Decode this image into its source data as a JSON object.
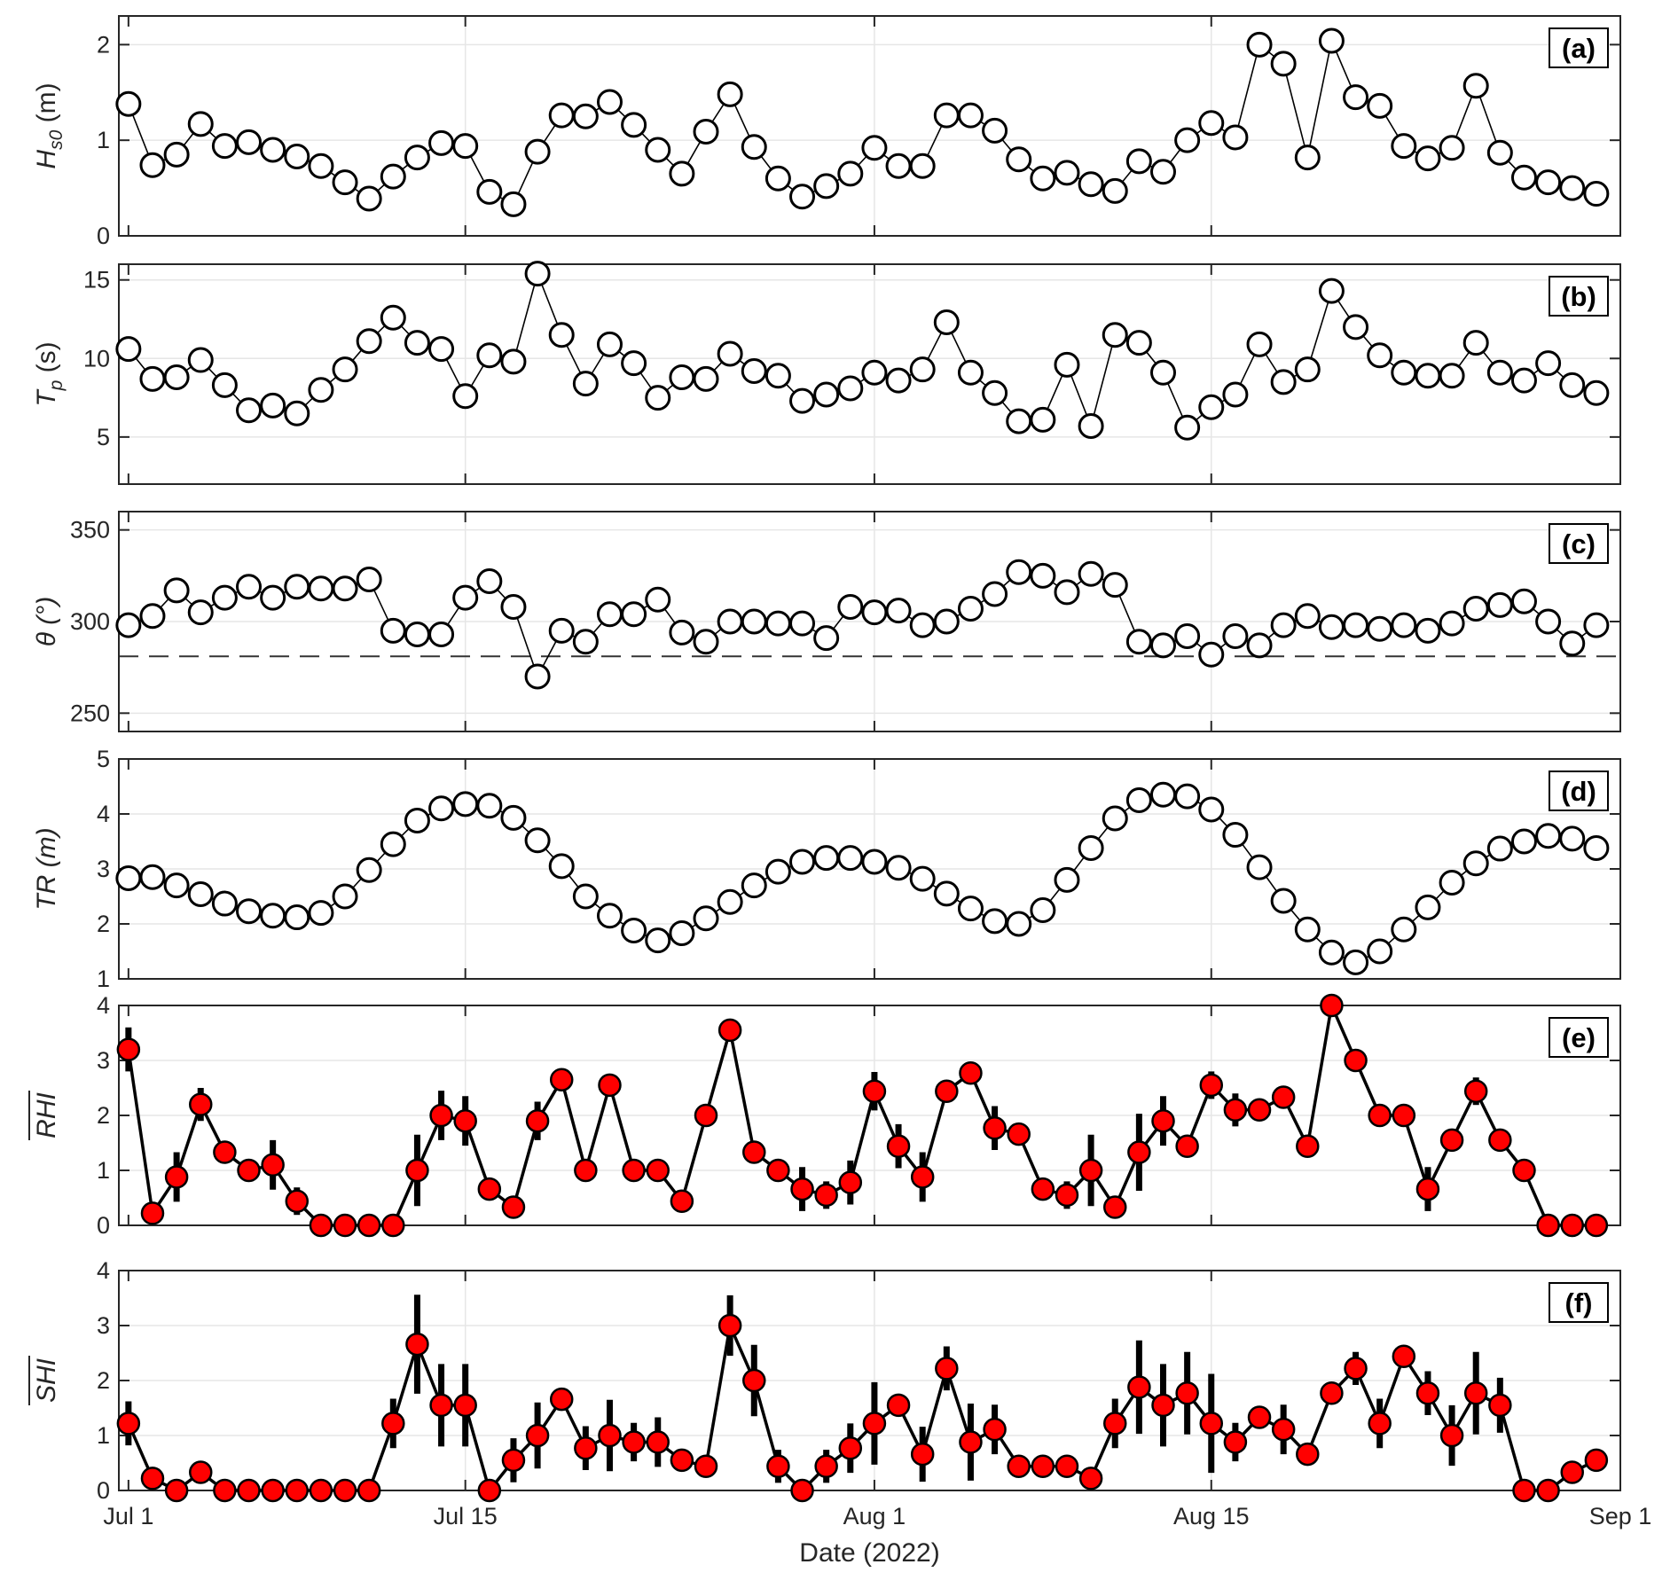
{
  "chart_data": [
    {
      "panel": "(a)",
      "type": "line",
      "ylabel": "H",
      "ylabel_sub": "s0",
      "ylabel_unit": " (m)",
      "ylim": [
        0,
        2.3
      ],
      "yticks": [
        0,
        1,
        2
      ],
      "x": [
        1,
        2,
        3,
        4,
        5,
        6,
        7,
        8,
        9,
        10,
        11,
        12,
        13,
        14,
        15,
        16,
        17,
        18,
        19,
        20,
        21,
        22,
        23,
        24,
        25,
        26,
        27,
        28,
        29,
        30,
        31,
        32,
        33,
        34,
        35,
        36,
        37,
        38,
        39,
        40,
        41,
        42,
        43,
        44,
        45,
        46,
        47,
        48,
        49,
        50,
        51,
        52,
        53,
        54,
        55,
        56,
        57,
        58,
        59,
        60,
        61,
        62
      ],
      "values": [
        1.38,
        0.74,
        0.85,
        1.17,
        0.94,
        0.98,
        0.9,
        0.83,
        0.73,
        0.56,
        0.39,
        0.62,
        0.82,
        0.97,
        0.94,
        0.46,
        0.33,
        0.88,
        1.26,
        1.25,
        1.4,
        1.16,
        0.9,
        0.65,
        1.09,
        1.48,
        0.93,
        0.6,
        0.41,
        0.52,
        0.65,
        0.92,
        0.73,
        0.73,
        1.26,
        1.26,
        1.1,
        0.8,
        0.6,
        0.66,
        0.54,
        0.47,
        0.78,
        0.67,
        1.0,
        1.18,
        1.03,
        2.0,
        1.8,
        0.82,
        2.04,
        1.45,
        1.36,
        0.94,
        0.81,
        0.92,
        1.57,
        0.87,
        0.61,
        0.56,
        0.5,
        0.44
      ]
    },
    {
      "panel": "(b)",
      "type": "line",
      "ylabel": "T",
      "ylabel_sub": "p",
      "ylabel_unit": " (s)",
      "ylim": [
        2,
        16
      ],
      "yticks": [
        5,
        10,
        15
      ],
      "x": [
        1,
        2,
        3,
        4,
        5,
        6,
        7,
        8,
        9,
        10,
        11,
        12,
        13,
        14,
        15,
        16,
        17,
        18,
        19,
        20,
        21,
        22,
        23,
        24,
        25,
        26,
        27,
        28,
        29,
        30,
        31,
        32,
        33,
        34,
        35,
        36,
        37,
        38,
        39,
        40,
        41,
        42,
        43,
        44,
        45,
        46,
        47,
        48,
        49,
        50,
        51,
        52,
        53,
        54,
        55,
        56,
        57,
        58,
        59,
        60,
        61,
        62
      ],
      "values": [
        10.6,
        8.7,
        8.8,
        9.9,
        8.3,
        6.7,
        7.0,
        6.5,
        8.0,
        9.3,
        11.1,
        12.6,
        11.0,
        10.6,
        7.6,
        10.2,
        9.8,
        15.4,
        11.5,
        8.4,
        10.9,
        9.7,
        7.5,
        8.8,
        8.7,
        10.3,
        9.2,
        8.9,
        7.3,
        7.7,
        8.1,
        9.1,
        8.6,
        9.3,
        12.3,
        9.1,
        7.8,
        6.0,
        6.1,
        9.6,
        5.7,
        11.5,
        11.0,
        9.1,
        5.6,
        6.9,
        7.7,
        10.9,
        8.5,
        9.3,
        14.3,
        12.0,
        10.2,
        9.1,
        8.9,
        8.9,
        11.0,
        9.1,
        8.6,
        9.7,
        8.3,
        7.8
      ]
    },
    {
      "panel": "(c)",
      "type": "line",
      "ylabel": "θ (°)",
      "ylim": [
        240,
        360
      ],
      "yticks": [
        250,
        300,
        350
      ],
      "reference_line": 281,
      "x": [
        1,
        2,
        3,
        4,
        5,
        6,
        7,
        8,
        9,
        10,
        11,
        12,
        13,
        14,
        15,
        16,
        17,
        18,
        19,
        20,
        21,
        22,
        23,
        24,
        25,
        26,
        27,
        28,
        29,
        30,
        31,
        32,
        33,
        34,
        35,
        36,
        37,
        38,
        39,
        40,
        41,
        42,
        43,
        44,
        45,
        46,
        47,
        48,
        49,
        50,
        51,
        52,
        53,
        54,
        55,
        56,
        57,
        58,
        59,
        60,
        61,
        62
      ],
      "values": [
        298,
        303,
        317,
        305,
        313,
        319,
        313,
        319,
        318,
        318,
        323,
        295,
        293,
        293,
        313,
        322,
        308,
        270,
        295,
        289,
        304,
        304,
        312,
        294,
        289,
        300,
        300,
        299,
        299,
        291,
        308,
        305,
        306,
        298,
        300,
        307,
        315,
        327,
        325,
        316,
        326,
        320,
        289,
        287,
        292,
        282,
        292,
        287,
        298,
        303,
        297,
        298,
        296,
        298,
        295,
        299,
        307,
        309,
        311,
        300,
        288,
        298
      ]
    },
    {
      "panel": "(d)",
      "type": "line",
      "ylabel": "TR (m)",
      "ylim": [
        1,
        5
      ],
      "yticks": [
        1,
        2,
        3,
        4,
        5
      ],
      "x": [
        1,
        2,
        3,
        4,
        5,
        6,
        7,
        8,
        9,
        10,
        11,
        12,
        13,
        14,
        15,
        16,
        17,
        18,
        19,
        20,
        21,
        22,
        23,
        24,
        25,
        26,
        27,
        28,
        29,
        30,
        31,
        32,
        33,
        34,
        35,
        36,
        37,
        38,
        39,
        40,
        41,
        42,
        43,
        44,
        45,
        46,
        47,
        48,
        49,
        50,
        51,
        52,
        53,
        54,
        55,
        56,
        57,
        58,
        59,
        60,
        61,
        62
      ],
      "values": [
        2.83,
        2.85,
        2.7,
        2.54,
        2.37,
        2.23,
        2.15,
        2.12,
        2.2,
        2.5,
        2.98,
        3.45,
        3.88,
        4.1,
        4.18,
        4.15,
        3.93,
        3.52,
        3.05,
        2.5,
        2.15,
        1.88,
        1.7,
        1.83,
        2.1,
        2.4,
        2.7,
        2.95,
        3.13,
        3.2,
        3.2,
        3.13,
        3.02,
        2.82,
        2.55,
        2.28,
        2.05,
        2.0,
        2.25,
        2.8,
        3.38,
        3.92,
        4.25,
        4.35,
        4.32,
        4.08,
        3.62,
        3.03,
        2.42,
        1.9,
        1.48,
        1.3,
        1.5,
        1.9,
        2.3,
        2.75,
        3.1,
        3.37,
        3.5,
        3.6,
        3.55,
        3.38
      ]
    },
    {
      "panel": "(e)",
      "type": "line",
      "ylabel": "RHI",
      "ylabel_overline": true,
      "ylim": [
        0,
        4
      ],
      "yticks": [
        0,
        1,
        2,
        3,
        4
      ],
      "x": [
        1,
        2,
        3,
        4,
        5,
        6,
        7,
        8,
        9,
        10,
        11,
        12,
        13,
        14,
        15,
        16,
        17,
        18,
        19,
        20,
        21,
        22,
        23,
        24,
        25,
        26,
        27,
        28,
        29,
        30,
        31,
        32,
        33,
        34,
        35,
        36,
        37,
        38,
        39,
        40,
        41,
        42,
        43,
        44,
        45,
        46,
        47,
        48,
        49,
        50,
        51,
        52,
        53,
        54,
        55,
        56,
        57,
        58,
        59,
        60,
        61,
        62
      ],
      "values": [
        3.2,
        0.22,
        0.88,
        2.2,
        1.33,
        1.0,
        1.1,
        0.44,
        0.0,
        0.0,
        0.0,
        0.0,
        1.0,
        2.0,
        1.9,
        0.66,
        0.33,
        1.9,
        2.65,
        1.0,
        2.55,
        1.0,
        1.0,
        0.44,
        2.0,
        3.55,
        1.33,
        1.0,
        0.66,
        0.55,
        0.78,
        2.44,
        1.44,
        0.88,
        2.44,
        2.77,
        1.77,
        1.66,
        0.66,
        0.55,
        1.0,
        0.33,
        1.33,
        1.9,
        1.44,
        2.55,
        2.1,
        2.1,
        2.33,
        1.44,
        4.0,
        3.0,
        2.0,
        2.0,
        0.66,
        1.55,
        2.44,
        1.55,
        1.0,
        0.0,
        0.0,
        0.0
      ],
      "error": [
        0.4,
        0.1,
        0.45,
        0.3,
        0.1,
        0.1,
        0.45,
        0.25,
        0.05,
        0.05,
        0.05,
        0.05,
        0.65,
        0.45,
        0.45,
        0.15,
        0.15,
        0.35,
        0.15,
        0.1,
        0.2,
        0.1,
        0.1,
        0.2,
        0.1,
        0.2,
        0.2,
        0.1,
        0.4,
        0.25,
        0.4,
        0.35,
        0.4,
        0.45,
        0.15,
        0.1,
        0.4,
        0.15,
        0.1,
        0.25,
        0.65,
        0.2,
        0.7,
        0.45,
        0.1,
        0.25,
        0.3,
        0.1,
        0.2,
        0.2,
        0.1,
        0.1,
        0.1,
        0.1,
        0.4,
        0.1,
        0.25,
        0.2,
        0.1,
        0.05,
        0.05,
        0.05
      ]
    },
    {
      "panel": "(f)",
      "type": "line",
      "ylabel": "SHI",
      "ylabel_overline": true,
      "ylim": [
        0,
        4
      ],
      "yticks": [
        0,
        1,
        2,
        3,
        4
      ],
      "xlabel": "Date (2022)",
      "xticks": [
        {
          "x": 1,
          "label": "Jul 1"
        },
        {
          "x": 15,
          "label": "Jul 15"
        },
        {
          "x": 32,
          "label": "Aug 1"
        },
        {
          "x": 46,
          "label": "Aug 15"
        },
        {
          "x": 63,
          "label": "Sep 1"
        }
      ],
      "x": [
        1,
        2,
        3,
        4,
        5,
        6,
        7,
        8,
        9,
        10,
        11,
        12,
        13,
        14,
        15,
        16,
        17,
        18,
        19,
        20,
        21,
        22,
        23,
        24,
        25,
        26,
        27,
        28,
        29,
        30,
        31,
        32,
        33,
        34,
        35,
        36,
        37,
        38,
        39,
        40,
        41,
        42,
        43,
        44,
        45,
        46,
        47,
        48,
        49,
        50,
        51,
        52,
        53,
        54,
        55,
        56,
        57,
        58,
        59,
        60,
        61,
        62
      ],
      "values": [
        1.22,
        0.22,
        0.0,
        0.33,
        0.0,
        0.0,
        0.0,
        0.0,
        0.0,
        0.0,
        0.0,
        1.22,
        2.66,
        1.55,
        1.55,
        0.0,
        0.55,
        1.0,
        1.66,
        0.77,
        1.0,
        0.88,
        0.88,
        0.55,
        0.44,
        3.0,
        2.0,
        0.44,
        0.0,
        0.44,
        0.77,
        1.22,
        1.55,
        0.66,
        2.22,
        0.88,
        1.11,
        0.44,
        0.44,
        0.44,
        0.22,
        1.22,
        1.88,
        1.55,
        1.77,
        1.22,
        0.88,
        1.33,
        1.11,
        0.66,
        1.77,
        2.22,
        1.22,
        2.44,
        1.77,
        1.0,
        1.77,
        1.55,
        0.0,
        0.0,
        0.33,
        0.55
      ],
      "error": [
        0.4,
        0.1,
        0.05,
        0.2,
        0.05,
        0.05,
        0.05,
        0.05,
        0.05,
        0.05,
        0.05,
        0.45,
        0.9,
        0.75,
        0.75,
        0.05,
        0.4,
        0.6,
        0.15,
        0.4,
        0.65,
        0.35,
        0.45,
        0.2,
        0.2,
        0.55,
        0.65,
        0.3,
        0.05,
        0.3,
        0.45,
        0.75,
        0.15,
        0.5,
        0.4,
        0.7,
        0.45,
        0.2,
        0.2,
        0.2,
        0.1,
        0.45,
        0.85,
        0.75,
        0.75,
        0.9,
        0.35,
        0.15,
        0.45,
        0.15,
        0.15,
        0.3,
        0.45,
        0.2,
        0.4,
        0.55,
        0.75,
        0.5,
        0.05,
        0.05,
        0.2,
        0.2
      ]
    }
  ],
  "colors": {
    "axis": "#262626",
    "grid": "#e6e6e6",
    "open_marker_fill": "#ffffff",
    "marker_edge": "#000000",
    "index_marker_fill": "#ff0000",
    "line": "#000000",
    "reference_line": "#333333"
  }
}
